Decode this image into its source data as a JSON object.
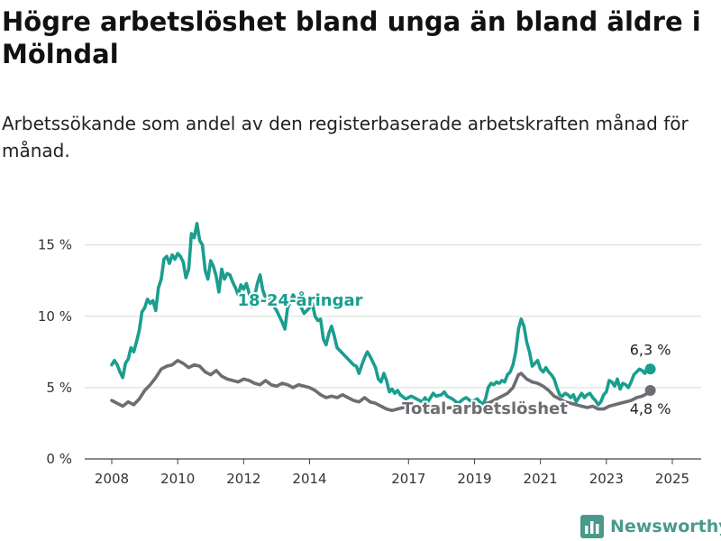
{
  "title": "Högre arbetslöshet bland unga än bland äldre i Mölndal",
  "subtitle": "Arbetssökande som andel av den registerbaserade arbetskraften månad för månad.",
  "brand": {
    "name": "Newsworthy",
    "icon": "bar-chart-logo-icon"
  },
  "chart_data": {
    "type": "line",
    "x_ticks": [
      "2008",
      "2010",
      "2012",
      "2014",
      "2017",
      "2019",
      "2021",
      "2023",
      "2025"
    ],
    "y_ticks": [
      "0 %",
      "5 %",
      "10 %",
      "15 %"
    ],
    "ylim": [
      0,
      17
    ],
    "grid": "horizontal",
    "colors": {
      "youth": "#1a9e8f",
      "total": "#6d6d72"
    },
    "series": [
      {
        "name": "18-24-åringar",
        "key": "youth",
        "end_label": "6,3 %",
        "points": [
          [
            "2008-01",
            6.6
          ],
          [
            "2008-02",
            6.9
          ],
          [
            "2008-03",
            6.6
          ],
          [
            "2008-04",
            6.1
          ],
          [
            "2008-05",
            5.7
          ],
          [
            "2008-06",
            6.7
          ],
          [
            "2008-07",
            7.0
          ],
          [
            "2008-08",
            7.8
          ],
          [
            "2008-09",
            7.5
          ],
          [
            "2008-10",
            8.2
          ],
          [
            "2008-11",
            9.0
          ],
          [
            "2008-12",
            10.3
          ],
          [
            "2009-01",
            10.6
          ],
          [
            "2009-02",
            11.2
          ],
          [
            "2009-03",
            10.9
          ],
          [
            "2009-04",
            11.1
          ],
          [
            "2009-05",
            10.4
          ],
          [
            "2009-06",
            12.0
          ],
          [
            "2009-07",
            12.6
          ],
          [
            "2009-08",
            14.0
          ],
          [
            "2009-09",
            14.2
          ],
          [
            "2009-10",
            13.7
          ],
          [
            "2009-11",
            14.3
          ],
          [
            "2009-12",
            14.0
          ],
          [
            "2010-01",
            14.4
          ],
          [
            "2010-02",
            14.2
          ],
          [
            "2010-03",
            13.8
          ],
          [
            "2010-04",
            12.7
          ],
          [
            "2010-05",
            13.3
          ],
          [
            "2010-06",
            15.8
          ],
          [
            "2010-07",
            15.5
          ],
          [
            "2010-08",
            16.5
          ],
          [
            "2010-09",
            15.3
          ],
          [
            "2010-10",
            15.0
          ],
          [
            "2010-11",
            13.2
          ],
          [
            "2010-12",
            12.6
          ],
          [
            "2011-01",
            13.9
          ],
          [
            "2011-02",
            13.5
          ],
          [
            "2011-03",
            12.8
          ],
          [
            "2011-04",
            11.7
          ],
          [
            "2011-05",
            13.3
          ],
          [
            "2011-06",
            12.6
          ],
          [
            "2011-07",
            13.0
          ],
          [
            "2011-08",
            12.9
          ],
          [
            "2011-09",
            12.4
          ],
          [
            "2011-10",
            12.0
          ],
          [
            "2011-11",
            11.5
          ],
          [
            "2011-12",
            12.2
          ],
          [
            "2012-01",
            11.9
          ],
          [
            "2012-02",
            12.3
          ],
          [
            "2012-03",
            11.6
          ],
          [
            "2012-04",
            10.7
          ],
          [
            "2012-05",
            11.4
          ],
          [
            "2012-06",
            12.3
          ],
          [
            "2012-07",
            12.9
          ],
          [
            "2012-08",
            11.8
          ],
          [
            "2012-09",
            11.3
          ],
          [
            "2012-10",
            11.5
          ],
          [
            "2012-11",
            11.0
          ],
          [
            "2013-01",
            10.4
          ],
          [
            "2013-03",
            9.6
          ],
          [
            "2013-04",
            9.1
          ],
          [
            "2013-05",
            10.6
          ],
          [
            "2013-06",
            11.0
          ],
          [
            "2013-07",
            11.5
          ],
          [
            "2013-08",
            11.2
          ],
          [
            "2013-09",
            10.8
          ],
          [
            "2013-10",
            10.6
          ],
          [
            "2013-11",
            10.2
          ],
          [
            "2014-01",
            10.6
          ],
          [
            "2014-02",
            10.9
          ],
          [
            "2014-03",
            10.0
          ],
          [
            "2014-04",
            9.7
          ],
          [
            "2014-05",
            9.8
          ],
          [
            "2014-06",
            8.4
          ],
          [
            "2014-07",
            8.0
          ],
          [
            "2014-08",
            8.8
          ],
          [
            "2014-09",
            9.3
          ],
          [
            "2014-10",
            8.6
          ],
          [
            "2014-11",
            7.8
          ],
          [
            "2015-01",
            7.4
          ],
          [
            "2015-03",
            7.0
          ],
          [
            "2015-05",
            6.6
          ],
          [
            "2015-06",
            6.5
          ],
          [
            "2015-07",
            6.0
          ],
          [
            "2015-08",
            6.6
          ],
          [
            "2015-09",
            7.1
          ],
          [
            "2015-10",
            7.5
          ],
          [
            "2015-11",
            7.2
          ],
          [
            "2016-01",
            6.4
          ],
          [
            "2016-02",
            5.6
          ],
          [
            "2016-03",
            5.4
          ],
          [
            "2016-04",
            6.0
          ],
          [
            "2016-05",
            5.5
          ],
          [
            "2016-06",
            4.7
          ],
          [
            "2016-07",
            4.9
          ],
          [
            "2016-08",
            4.6
          ],
          [
            "2016-09",
            4.8
          ],
          [
            "2016-10",
            4.5
          ],
          [
            "2016-12",
            4.2
          ],
          [
            "2017-02",
            4.4
          ],
          [
            "2017-04",
            4.2
          ],
          [
            "2017-06",
            4.0
          ],
          [
            "2017-07",
            4.3
          ],
          [
            "2017-08",
            4.0
          ],
          [
            "2017-09",
            4.3
          ],
          [
            "2017-10",
            4.6
          ],
          [
            "2017-11",
            4.4
          ],
          [
            "2018-01",
            4.5
          ],
          [
            "2018-02",
            4.7
          ],
          [
            "2018-03",
            4.4
          ],
          [
            "2018-05",
            4.2
          ],
          [
            "2018-07",
            3.9
          ],
          [
            "2018-09",
            4.2
          ],
          [
            "2018-10",
            4.3
          ],
          [
            "2018-12",
            4.0
          ],
          [
            "2019-02",
            4.2
          ],
          [
            "2019-04",
            3.8
          ],
          [
            "2019-05",
            4.2
          ],
          [
            "2019-06",
            5.0
          ],
          [
            "2019-07",
            5.3
          ],
          [
            "2019-08",
            5.2
          ],
          [
            "2019-09",
            5.4
          ],
          [
            "2019-10",
            5.3
          ],
          [
            "2019-11",
            5.5
          ],
          [
            "2019-12",
            5.4
          ],
          [
            "2020-01",
            5.9
          ],
          [
            "2020-02",
            6.1
          ],
          [
            "2020-03",
            6.6
          ],
          [
            "2020-04",
            7.5
          ],
          [
            "2020-05",
            9.1
          ],
          [
            "2020-06",
            9.8
          ],
          [
            "2020-07",
            9.3
          ],
          [
            "2020-08",
            8.2
          ],
          [
            "2020-09",
            7.5
          ],
          [
            "2020-10",
            6.5
          ],
          [
            "2020-11",
            6.7
          ],
          [
            "2020-12",
            6.9
          ],
          [
            "2021-01",
            6.3
          ],
          [
            "2021-02",
            6.1
          ],
          [
            "2021-03",
            6.4
          ],
          [
            "2021-04",
            6.1
          ],
          [
            "2021-05",
            5.9
          ],
          [
            "2021-06",
            5.6
          ],
          [
            "2021-07",
            5.0
          ],
          [
            "2021-08",
            4.5
          ],
          [
            "2021-09",
            4.4
          ],
          [
            "2021-10",
            4.6
          ],
          [
            "2021-11",
            4.5
          ],
          [
            "2021-12",
            4.3
          ],
          [
            "2022-01",
            4.5
          ],
          [
            "2022-02",
            4.0
          ],
          [
            "2022-03",
            4.3
          ],
          [
            "2022-04",
            4.6
          ],
          [
            "2022-05",
            4.3
          ],
          [
            "2022-06",
            4.5
          ],
          [
            "2022-07",
            4.6
          ],
          [
            "2022-08",
            4.3
          ],
          [
            "2022-09",
            4.1
          ],
          [
            "2022-10",
            3.8
          ],
          [
            "2022-11",
            4.0
          ],
          [
            "2022-12",
            4.5
          ],
          [
            "2023-01",
            4.7
          ],
          [
            "2023-02",
            5.5
          ],
          [
            "2023-03",
            5.4
          ],
          [
            "2023-04",
            5.1
          ],
          [
            "2023-05",
            5.6
          ],
          [
            "2023-06",
            4.9
          ],
          [
            "2023-07",
            5.3
          ],
          [
            "2023-08",
            5.2
          ],
          [
            "2023-09",
            5.0
          ],
          [
            "2023-10",
            5.4
          ],
          [
            "2023-11",
            5.9
          ],
          [
            "2023-12",
            6.1
          ],
          [
            "2024-01",
            6.3
          ],
          [
            "2024-02",
            6.2
          ],
          [
            "2024-03",
            6.0
          ],
          [
            "2024-04",
            6.5
          ],
          [
            "2024-05",
            6.3
          ]
        ]
      },
      {
        "name": "Total arbetslöshet",
        "key": "total",
        "end_label": "4,8 %",
        "points": [
          [
            "2008-01",
            4.1
          ],
          [
            "2008-03",
            3.9
          ],
          [
            "2008-05",
            3.7
          ],
          [
            "2008-07",
            4.0
          ],
          [
            "2008-09",
            3.8
          ],
          [
            "2008-11",
            4.2
          ],
          [
            "2009-01",
            4.8
          ],
          [
            "2009-03",
            5.2
          ],
          [
            "2009-05",
            5.7
          ],
          [
            "2009-07",
            6.3
          ],
          [
            "2009-09",
            6.5
          ],
          [
            "2009-11",
            6.6
          ],
          [
            "2010-01",
            6.9
          ],
          [
            "2010-03",
            6.7
          ],
          [
            "2010-05",
            6.4
          ],
          [
            "2010-07",
            6.6
          ],
          [
            "2010-09",
            6.5
          ],
          [
            "2010-11",
            6.1
          ],
          [
            "2011-01",
            5.9
          ],
          [
            "2011-03",
            6.2
          ],
          [
            "2011-05",
            5.8
          ],
          [
            "2011-07",
            5.6
          ],
          [
            "2011-09",
            5.5
          ],
          [
            "2011-11",
            5.4
          ],
          [
            "2012-01",
            5.6
          ],
          [
            "2012-03",
            5.5
          ],
          [
            "2012-05",
            5.3
          ],
          [
            "2012-07",
            5.2
          ],
          [
            "2012-09",
            5.5
          ],
          [
            "2012-11",
            5.2
          ],
          [
            "2013-01",
            5.1
          ],
          [
            "2013-03",
            5.3
          ],
          [
            "2013-05",
            5.2
          ],
          [
            "2013-07",
            5.0
          ],
          [
            "2013-09",
            5.2
          ],
          [
            "2013-11",
            5.1
          ],
          [
            "2014-01",
            5.0
          ],
          [
            "2014-03",
            4.8
          ],
          [
            "2014-05",
            4.5
          ],
          [
            "2014-07",
            4.3
          ],
          [
            "2014-09",
            4.4
          ],
          [
            "2014-11",
            4.3
          ],
          [
            "2015-01",
            4.5
          ],
          [
            "2015-03",
            4.3
          ],
          [
            "2015-05",
            4.1
          ],
          [
            "2015-07",
            4.0
          ],
          [
            "2015-09",
            4.3
          ],
          [
            "2015-11",
            4.0
          ],
          [
            "2016-01",
            3.9
          ],
          [
            "2016-03",
            3.7
          ],
          [
            "2016-05",
            3.5
          ],
          [
            "2016-07",
            3.4
          ],
          [
            "2016-09",
            3.5
          ],
          [
            "2016-11",
            3.6
          ],
          [
            "2017-01",
            3.5
          ],
          [
            "2017-04",
            3.6
          ],
          [
            "2017-07",
            3.5
          ],
          [
            "2017-10",
            3.6
          ],
          [
            "2018-01",
            3.5
          ],
          [
            "2018-04",
            3.6
          ],
          [
            "2018-07",
            3.5
          ],
          [
            "2018-10",
            3.6
          ],
          [
            "2019-01",
            3.7
          ],
          [
            "2019-04",
            3.8
          ],
          [
            "2019-07",
            4.0
          ],
          [
            "2019-10",
            4.3
          ],
          [
            "2020-01",
            4.6
          ],
          [
            "2020-03",
            5.0
          ],
          [
            "2020-05",
            5.9
          ],
          [
            "2020-06",
            6.0
          ],
          [
            "2020-08",
            5.6
          ],
          [
            "2020-10",
            5.4
          ],
          [
            "2020-12",
            5.3
          ],
          [
            "2021-02",
            5.1
          ],
          [
            "2021-04",
            4.8
          ],
          [
            "2021-06",
            4.4
          ],
          [
            "2021-08",
            4.2
          ],
          [
            "2021-10",
            4.0
          ],
          [
            "2021-12",
            3.9
          ],
          [
            "2022-02",
            3.8
          ],
          [
            "2022-04",
            3.7
          ],
          [
            "2022-06",
            3.6
          ],
          [
            "2022-08",
            3.7
          ],
          [
            "2022-10",
            3.5
          ],
          [
            "2022-12",
            3.5
          ],
          [
            "2023-02",
            3.7
          ],
          [
            "2023-04",
            3.8
          ],
          [
            "2023-06",
            3.9
          ],
          [
            "2023-08",
            4.0
          ],
          [
            "2023-10",
            4.1
          ],
          [
            "2023-12",
            4.3
          ],
          [
            "2024-02",
            4.4
          ],
          [
            "2024-04",
            4.6
          ],
          [
            "2024-05",
            4.8
          ]
        ]
      }
    ]
  }
}
